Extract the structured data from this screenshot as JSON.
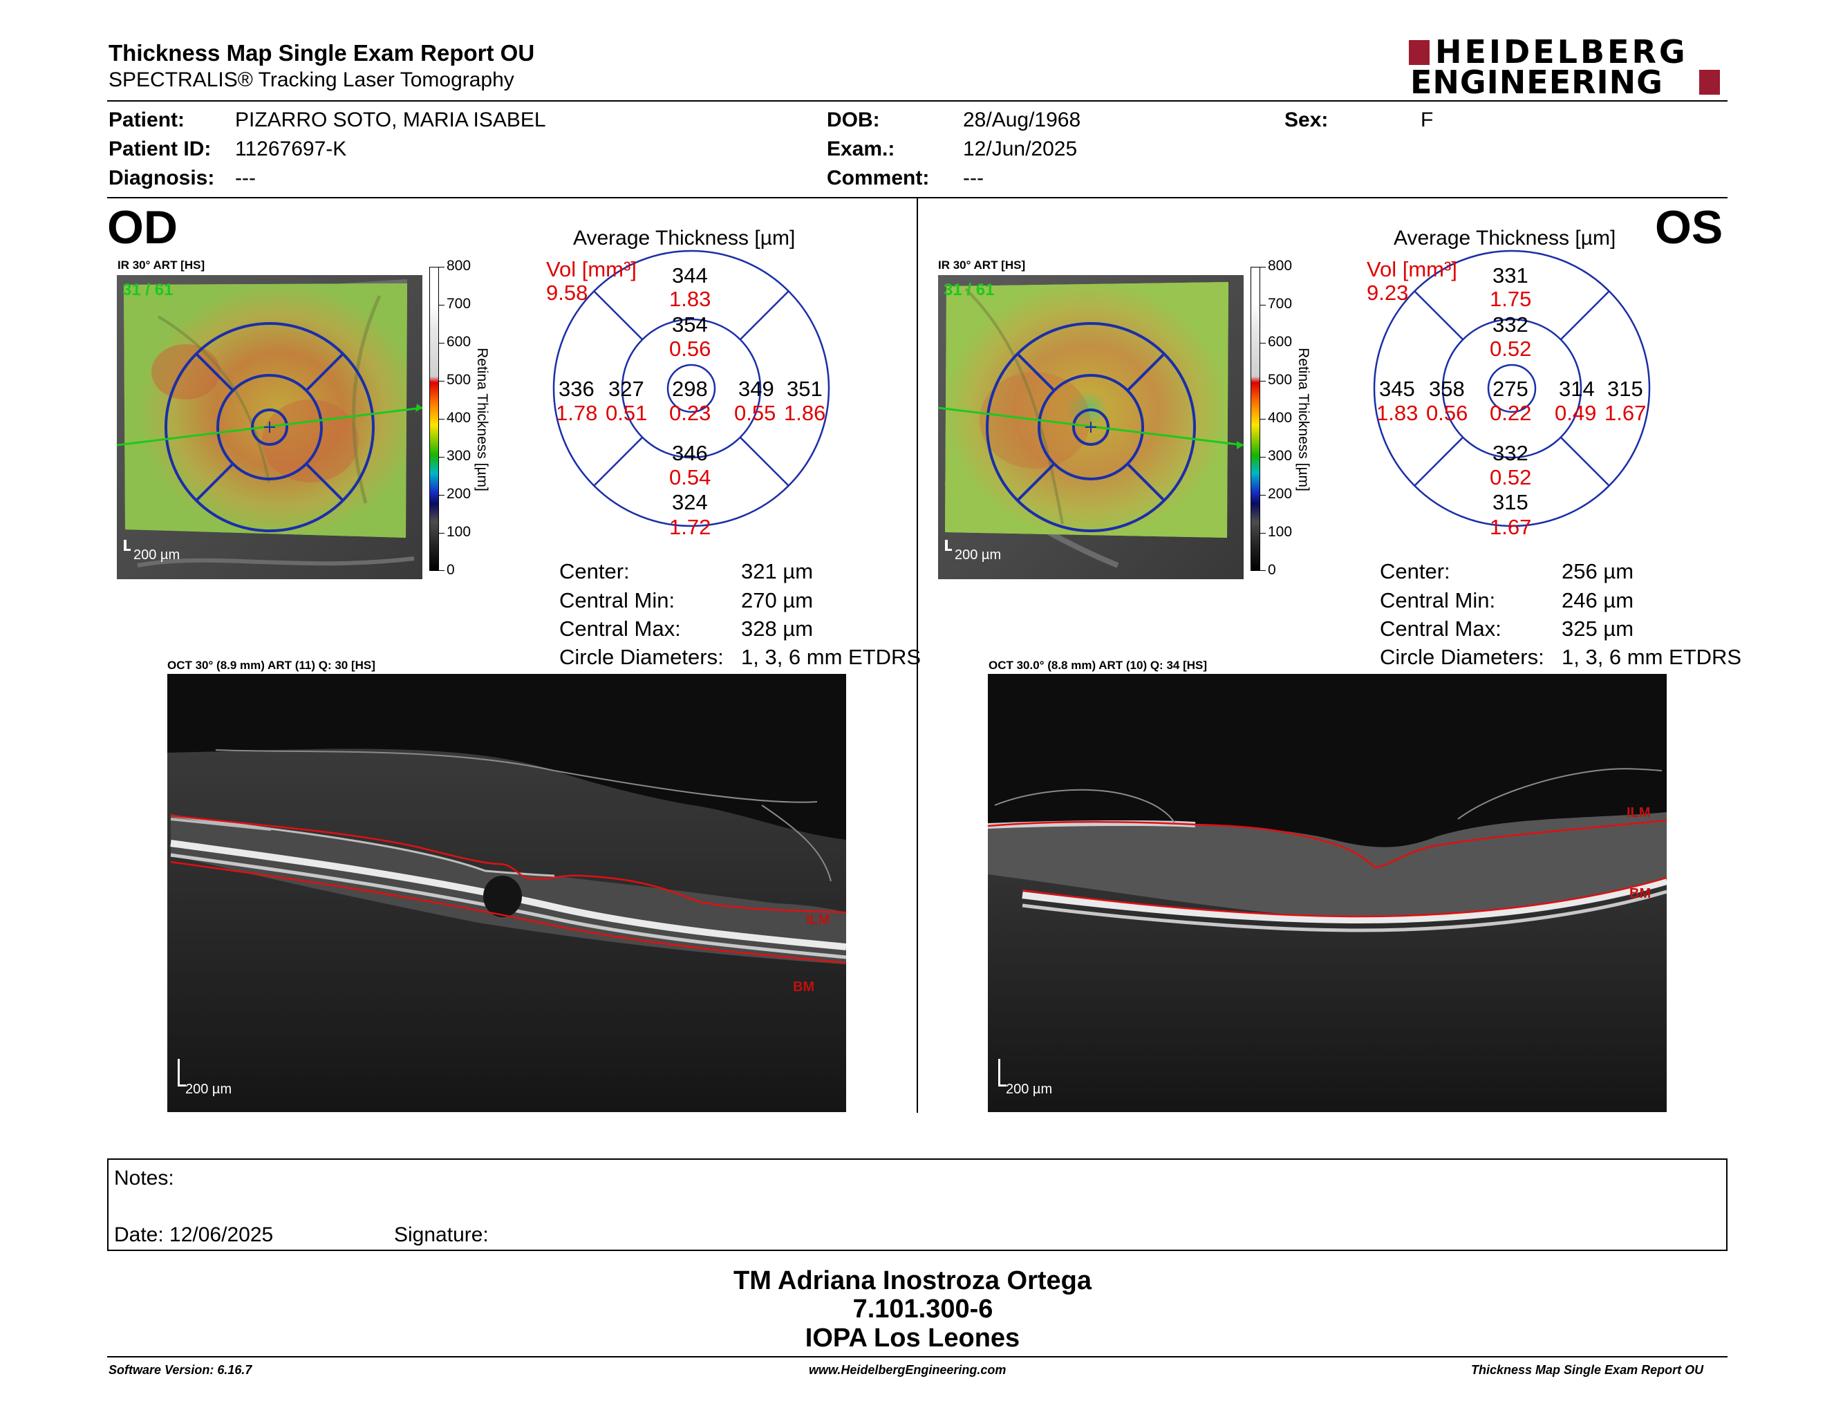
{
  "header": {
    "title": "Thickness Map Single Exam Report OU",
    "subtitle": "SPECTRALIS® Tracking Laser Tomography",
    "logo_line1": "HEIDELBERG",
    "logo_line2": "ENGINEERING"
  },
  "patient": {
    "patient_label": "Patient:",
    "patient_value": "PIZARRO SOTO, MARIA ISABEL",
    "id_label": "Patient ID:",
    "id_value": "11267697-K",
    "diagnosis_label": "Diagnosis:",
    "diagnosis_value": "---",
    "dob_label": "DOB:",
    "dob_value": "28/Aug/1968",
    "exam_label": "Exam.:",
    "exam_value": "12/Jun/2025",
    "comment_label": "Comment:",
    "comment_value": "---",
    "sex_label": "Sex:",
    "sex_value": "F"
  },
  "colorbar": {
    "title": "Retina Thickness [µm]",
    "ticks": [
      "800",
      "700",
      "600",
      "500",
      "400",
      "300",
      "200",
      "100",
      "0"
    ]
  },
  "od": {
    "eye": "OD",
    "ir_label": "IR 30° ART [HS]",
    "scan_index": "31 / 61",
    "scale": "200 µm",
    "avg_title": "Average Thickness [µm]",
    "vol_label": "Vol [mm³]",
    "vol_total": "9.58",
    "etdrs": {
      "outer_sup": {
        "t": "344",
        "v": "1.83"
      },
      "inner_sup": {
        "t": "354",
        "v": "0.56"
      },
      "outer_temp_left": {
        "t": "336",
        "v": "1.78"
      },
      "inner_left": {
        "t": "327",
        "v": "0.51"
      },
      "center": {
        "t": "298",
        "v": "0.23"
      },
      "inner_right": {
        "t": "349",
        "v": "0.55"
      },
      "outer_right": {
        "t": "351",
        "v": "1.86"
      },
      "inner_inf": {
        "t": "346",
        "v": "0.54"
      },
      "outer_inf": {
        "t": "324",
        "v": "1.72"
      }
    },
    "stats": {
      "center_label": "Center:",
      "center_value": "321 µm",
      "min_label": "Central Min:",
      "min_value": "270 µm",
      "max_label": "Central Max:",
      "max_value": "328 µm",
      "circ_label": "Circle Diameters:",
      "circ_value": "1, 3, 6 mm ETDRS"
    },
    "oct_label": "OCT 30° (8.9 mm) ART (11) Q: 30 [HS]",
    "ilm": "ILM",
    "bm": "BM",
    "oct_scale": "200 µm"
  },
  "os": {
    "eye": "OS",
    "ir_label": "IR 30° ART [HS]",
    "scan_index": "31 / 61",
    "scale": "200 µm",
    "avg_title": "Average Thickness [µm]",
    "vol_label": "Vol [mm³]",
    "vol_total": "9.23",
    "etdrs": {
      "outer_sup": {
        "t": "331",
        "v": "1.75"
      },
      "inner_sup": {
        "t": "332",
        "v": "0.52"
      },
      "outer_temp_left": {
        "t": "345",
        "v": "1.83"
      },
      "inner_left": {
        "t": "358",
        "v": "0.56"
      },
      "center": {
        "t": "275",
        "v": "0.22"
      },
      "inner_right": {
        "t": "314",
        "v": "0.49"
      },
      "outer_right": {
        "t": "315",
        "v": "1.67"
      },
      "inner_inf": {
        "t": "332",
        "v": "0.52"
      },
      "outer_inf": {
        "t": "315",
        "v": "1.67"
      }
    },
    "stats": {
      "center_label": "Center:",
      "center_value": "256 µm",
      "min_label": "Central Min:",
      "min_value": "246 µm",
      "max_label": "Central Max:",
      "max_value": "325 µm",
      "circ_label": "Circle Diameters:",
      "circ_value": "1, 3, 6 mm ETDRS"
    },
    "oct_label": "OCT 30.0° (8.8 mm) ART (10) Q: 34 [HS]",
    "ilm": "ILM",
    "bm": "BM",
    "oct_scale": "200 µm"
  },
  "notes": {
    "notes_label": "Notes:",
    "date_label": "Date: 12/06/2025",
    "signature_label": "Signature:"
  },
  "signer": {
    "name": "TM Adriana Inostroza Ortega",
    "rut": "7.101.300-6",
    "institution": "IOPA Los Leones"
  },
  "footer": {
    "software": "Software Version: 6.16.7",
    "website": "www.HeidelbergEngineering.com",
    "report": "Thickness Map Single Exam Report OU"
  },
  "colors": {
    "brand_red": "#9b1b30",
    "etdrs_blue": "#1a2fa8",
    "vol_red": "#e00000"
  }
}
